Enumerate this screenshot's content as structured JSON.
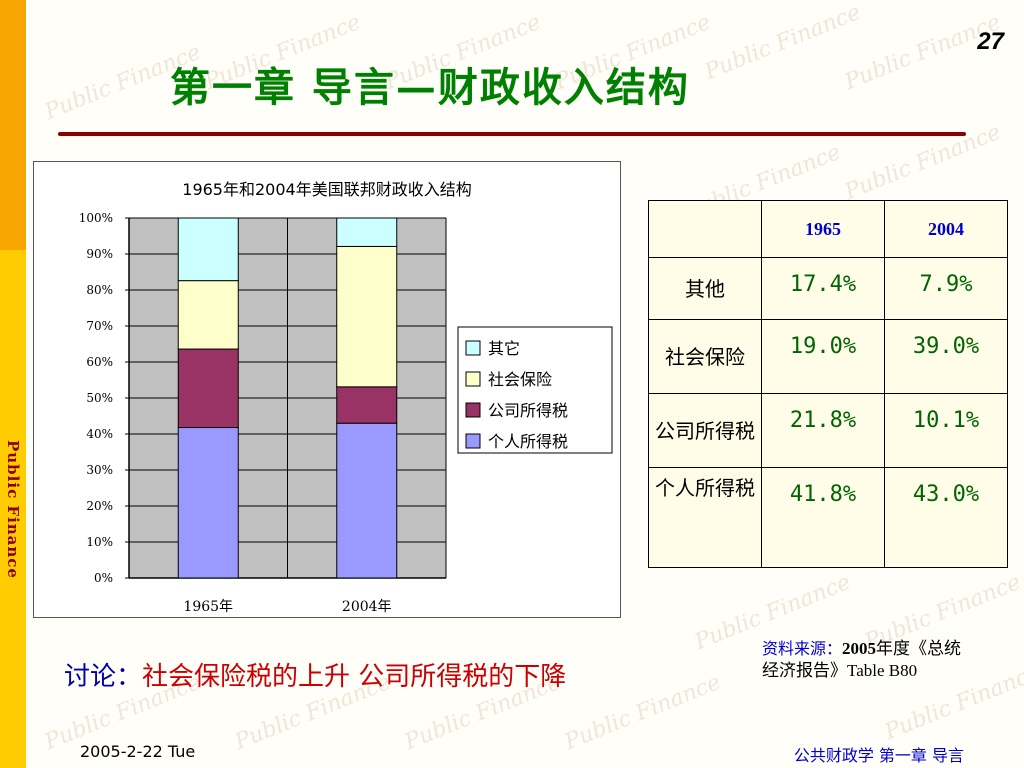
{
  "page": {
    "side_label": "Public  Finance",
    "watermark_text": "Public Finance",
    "page_number": "27",
    "title": "第一章   导言—财政收入结构",
    "footer_date": "2005-2-22 Tue",
    "footer_right": "公共财政学   第一章   导言"
  },
  "colors": {
    "title": "#008000",
    "rule": "#8b0000",
    "side_orange": "#f7a500",
    "side_yellow": "#ffcc00",
    "plot_bg": "#c0c0c0",
    "personal": "#9999ff",
    "corporate": "#993366",
    "social": "#ffffcc",
    "other": "#ccffff",
    "table_header": "#0000cc",
    "table_value": "#006400"
  },
  "chart_data": {
    "type": "bar",
    "stacked": true,
    "title": "1965年和2004年美国联邦财政收入结构",
    "categories": [
      "1965年",
      "2004年"
    ],
    "series": [
      {
        "name": "个人所得税",
        "values": [
          41.8,
          43.0
        ],
        "color": "#9999ff"
      },
      {
        "name": "公司所得税",
        "values": [
          21.8,
          10.1
        ],
        "color": "#993366"
      },
      {
        "name": "社会保险",
        "values": [
          19.0,
          39.0
        ],
        "color": "#ffffcc"
      },
      {
        "name": "其它",
        "values": [
          17.4,
          7.9
        ],
        "color": "#ccffff"
      }
    ],
    "legend_order": [
      "其它",
      "社会保险",
      "公司所得税",
      "个人所得税"
    ],
    "ylim": [
      0,
      100
    ],
    "yticks": [
      "0%",
      "10%",
      "20%",
      "30%",
      "40%",
      "50%",
      "60%",
      "70%",
      "80%",
      "90%",
      "100%"
    ],
    "grid": true,
    "legend_position": "right"
  },
  "table": {
    "headers": [
      "",
      "1965",
      "2004"
    ],
    "rows": [
      {
        "label": "其他",
        "v1965": "17.4%",
        "v2004": "7.9%"
      },
      {
        "label": "社会保险",
        "v1965": "19.0%",
        "v2004": "39.0%"
      },
      {
        "label": "公司所得税",
        "v1965": "21.8%",
        "v2004": "10.1%"
      },
      {
        "label": "个人所得税",
        "v1965": "41.8%",
        "v2004": "43.0%"
      }
    ]
  },
  "discussion": {
    "label": "讨论：",
    "text": "社会保险税的上升 公司所得税的下降"
  },
  "source": {
    "label": "资料来源：",
    "year": "2005",
    "rest": "年度《总统经济报告》Table B80"
  }
}
